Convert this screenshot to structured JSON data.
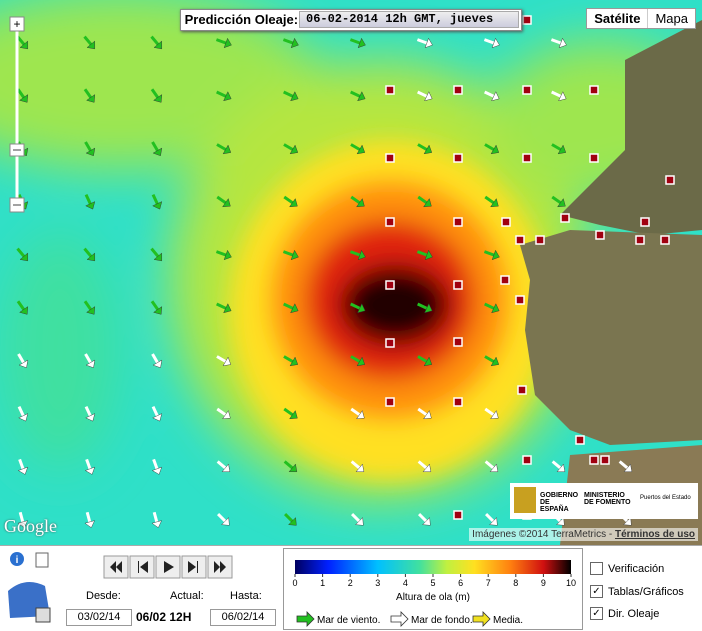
{
  "header": {
    "label": "Predicción Oleaje:",
    "date": "06-02-2014 12h GMT, jueves"
  },
  "map_type": [
    "Satélite",
    "Mapa"
  ],
  "google": "Google",
  "attribution": {
    "text": "Imágenes ©2014 TerraMetrics -",
    "link": "Términos de uso"
  },
  "logo": {
    "gov": "GOBIERNO DE ESPAÑA",
    "ministry": "MINISTERIO DE FOMENTO",
    "port": "Puertos del Estado"
  },
  "controls": {
    "desde_label": "Desde:",
    "actual_label": "Actual:",
    "hasta_label": "Hasta:",
    "desde": "03/02/14",
    "actual": "06/02 12H",
    "hasta": "06/02/14"
  },
  "colorbar": {
    "ticks": [
      0,
      1,
      2,
      3,
      4,
      5,
      6,
      7,
      8,
      9,
      10
    ],
    "range": [
      0,
      10
    ],
    "title": "Altura de ola (m)"
  },
  "legend": [
    "Mar de viento.",
    "Mar de fondo.",
    "Media."
  ],
  "options": [
    {
      "label": "Verificación",
      "checked": false
    },
    {
      "label": "Tablas/Gráficos",
      "checked": true
    },
    {
      "label": "Dir. Oleaje",
      "checked": true
    }
  ]
}
